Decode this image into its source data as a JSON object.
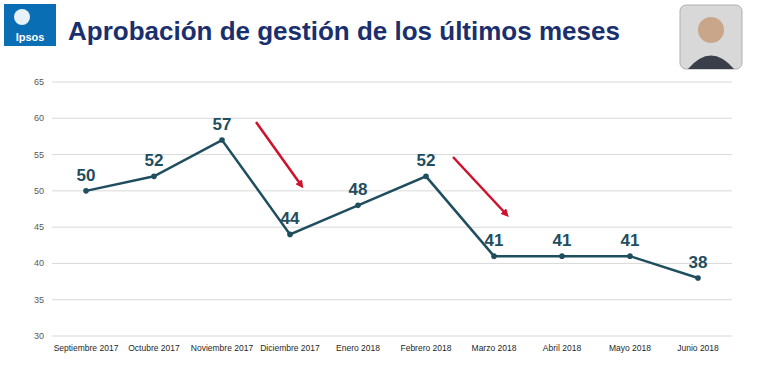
{
  "logo": "Ipsos",
  "chart_data": {
    "type": "line",
    "title": "Aprobación de gestión de los últimos meses",
    "categories": [
      "Septiembre 2017",
      "Octubre 2017",
      "Noviembre 2017",
      "Diciembre 2017",
      "Enero 2018",
      "Febrero 2018",
      "Marzo 2018",
      "Abril 2018",
      "Mayo 2018",
      "Junio 2018"
    ],
    "values": [
      50,
      52,
      57,
      44,
      48,
      52,
      41,
      41,
      41,
      38
    ],
    "color": "#1f4e5f",
    "marker": "circle",
    "ylim": [
      30,
      65
    ],
    "yticks": [
      30,
      35,
      40,
      45,
      50,
      55,
      60,
      65
    ],
    "grid": true,
    "data_labels": true
  }
}
